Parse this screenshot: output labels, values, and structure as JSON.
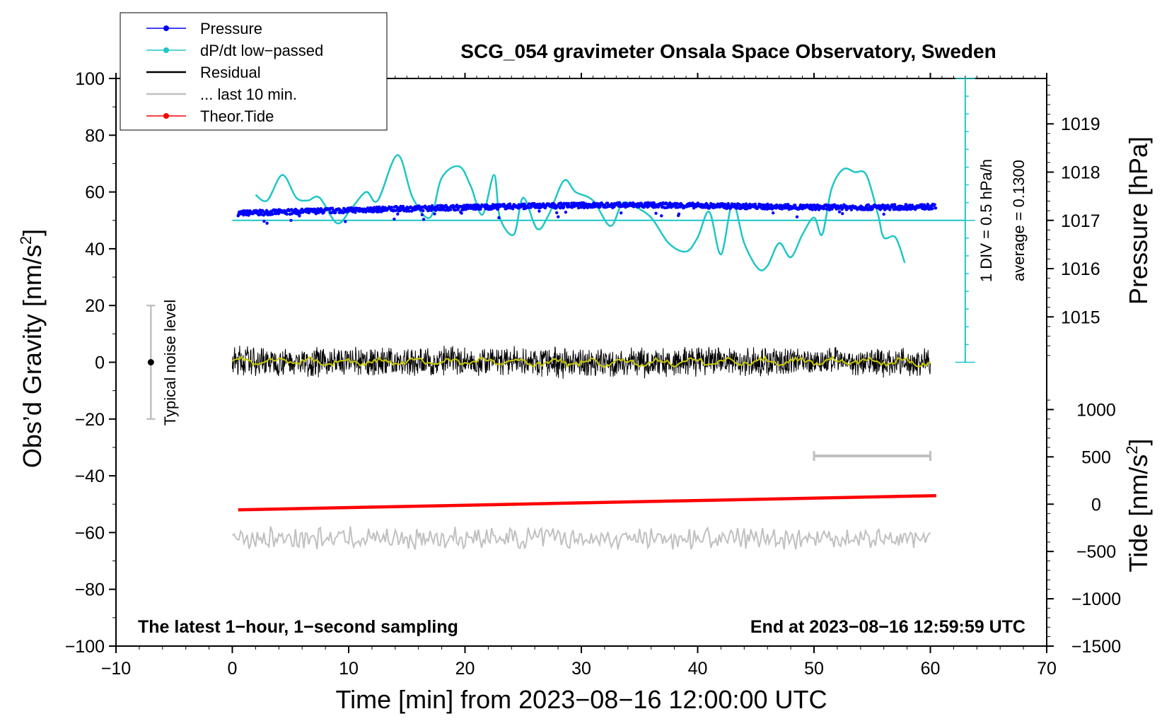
{
  "chart_data": {
    "type": "line",
    "title": "SCG_054 gravimeter Onsala Space Observatory, Sweden",
    "xlabel": "Time [min] from 2023−08−16 12:00:00 UTC",
    "ylabel_main": "Obs’d Gravity [nm/s",
    "ylabel_sup": "2",
    "ylabel_close": "]",
    "ylabel_pressure": "Pressure [hPa]",
    "ylabel_tide": "Tide [nm/s",
    "ylabel_tide_sup": "2",
    "ylabel_tide_close": "]",
    "xlim": [
      -10,
      70
    ],
    "ylim": [
      -100,
      100
    ],
    "x_ticks": [
      -10,
      0,
      10,
      20,
      30,
      40,
      50,
      60,
      70
    ],
    "x_tick_labels": [
      "−10",
      "0",
      "10",
      "20",
      "30",
      "40",
      "50",
      "60",
      "70"
    ],
    "y_ticks": [
      -100,
      -80,
      -60,
      -40,
      -20,
      0,
      20,
      40,
      60,
      80,
      100
    ],
    "y_tick_labels": [
      "−100",
      "−80",
      "−60",
      "−40",
      "−20",
      "0",
      "20",
      "40",
      "60",
      "80",
      "100"
    ],
    "pressure_axis": {
      "ticks": [
        1015,
        1016,
        1017,
        1018,
        1019
      ],
      "tick_labels": [
        "1015",
        "1016",
        "1017",
        "1018",
        "1019"
      ],
      "value_at_gravity_50": 1017,
      "hpa_per_gravity_unit": 0.05882
    },
    "tide_axis": {
      "ticks": [
        -1500,
        -1000,
        -500,
        0,
        500,
        1000
      ],
      "tick_labels": [
        "−1500",
        "−1000",
        "−500",
        "0",
        "500",
        "1000"
      ],
      "gravity_at_0": -50,
      "tide_per_gravity_unit": 30
    },
    "legend": {
      "position": "top-left",
      "entries": [
        {
          "label": "Pressure",
          "color": "#0000ff",
          "marker": true
        },
        {
          "label": "dP/dt low−passed",
          "color": "#1fc6c6",
          "marker": true
        },
        {
          "label": "Residual",
          "color": "#000000",
          "marker": false
        },
        {
          "label": "... last 10 min.",
          "color": "#c0c0c0",
          "marker": false
        },
        {
          "label": "Theor.Tide",
          "color": "#ff0000",
          "marker": true
        }
      ]
    },
    "series": [
      {
        "name": "Pressure",
        "color": "#0000ff",
        "x": [
          0.5,
          5,
          10,
          15,
          20,
          25,
          30,
          35,
          40,
          45,
          50,
          55,
          60
        ],
        "values": [
          52.5,
          53.0,
          53.6,
          54.1,
          54.6,
          55.0,
          55.3,
          55.4,
          55.2,
          54.9,
          54.6,
          54.6,
          54.8
        ]
      },
      {
        "name": "dP/dt low−passed",
        "color": "#1fc6c6",
        "x": [
          2,
          3,
          4.3,
          5.5,
          6.5,
          7.5,
          9,
          10.2,
          11.5,
          12.5,
          14.2,
          15.5,
          17,
          18,
          19.5,
          20.5,
          21.5,
          22.5,
          23,
          24.2,
          25,
          26.2,
          27.2,
          28.5,
          29.5,
          31,
          32.5,
          33.5,
          34.5,
          36,
          37.5,
          39,
          40,
          41,
          42,
          43,
          44,
          45.2,
          46,
          47,
          48,
          49,
          50,
          50.7,
          51.5,
          52.5,
          53.5,
          54.5,
          55.5,
          56,
          57,
          57.8
        ],
        "values": [
          59,
          57,
          66,
          58,
          57,
          58,
          49,
          54,
          60,
          57,
          73,
          58,
          51,
          65,
          69,
          62,
          52,
          66,
          51,
          45,
          58,
          47,
          52,
          64,
          60,
          57,
          48,
          56,
          55,
          51,
          42,
          39,
          44,
          53,
          38,
          56,
          42,
          33,
          34,
          42,
          37,
          45,
          51,
          45,
          61,
          68,
          67,
          66,
          52,
          44,
          44,
          35
        ]
      },
      {
        "name": "Residual",
        "color": "#000000",
        "x": [
          0,
          10,
          20,
          30,
          40,
          50,
          60
        ],
        "values": [
          0.5,
          0.0,
          0.3,
          -0.2,
          0.1,
          0.4,
          0.0
        ]
      },
      {
        "name": "... last 10 min.",
        "color": "#c0c0c0",
        "x": [
          0,
          10,
          20,
          30,
          40,
          50,
          60
        ],
        "values": [
          -62,
          -62,
          -62,
          -62,
          -62,
          -62,
          -62
        ]
      },
      {
        "name": "Theor.Tide",
        "color": "#ff0000",
        "x": [
          0.5,
          60.5
        ],
        "values": [
          -52,
          -47
        ]
      }
    ],
    "annotations": {
      "right_line1": "1 DIV = 0.5 hPa/h",
      "right_line2": "average = 0.1300",
      "noise_label": "Typical noise level",
      "noise_x": -7,
      "noise_range": [
        -20,
        20
      ],
      "last10_bar": {
        "x": [
          50,
          60
        ],
        "y": -33
      },
      "bottom_left": "The latest 1−hour, 1−second sampling",
      "bottom_right": "End at 2023−08−16 12:59:59 UTC",
      "dpdt_axis": {
        "x": 63,
        "zero": 0,
        "baseline": 50,
        "top": 100
      }
    }
  }
}
